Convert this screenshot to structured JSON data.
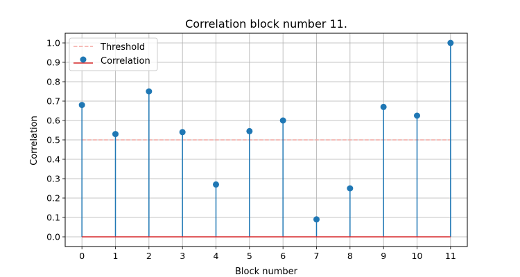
{
  "chart_data": {
    "type": "stem",
    "title": "Correlation block number 11.",
    "xlabel": "Block number",
    "ylabel": "Correlation",
    "xlim": [
      -0.5,
      11.5
    ],
    "ylim": [
      -0.05,
      1.05
    ],
    "x_ticks": [
      "0",
      "1",
      "2",
      "3",
      "4",
      "5",
      "6",
      "7",
      "8",
      "9",
      "10",
      "11"
    ],
    "y_ticks": [
      "0.0",
      "0.1",
      "0.2",
      "0.3",
      "0.4",
      "0.5",
      "0.6",
      "0.7",
      "0.8",
      "0.9",
      "1.0"
    ],
    "grid": true,
    "legend_position": "top-left",
    "threshold": {
      "name": "Threshold",
      "value": 0.5,
      "color": "#f4a6a0",
      "style": "dashed"
    },
    "series": [
      {
        "name": "Correlation",
        "x": [
          0,
          1,
          2,
          3,
          4,
          5,
          6,
          7,
          8,
          9,
          10,
          11
        ],
        "values": [
          0.68,
          0.53,
          0.75,
          0.54,
          0.27,
          0.545,
          0.6,
          0.09,
          0.25,
          0.67,
          0.625,
          1.0
        ],
        "marker_color": "#1f77b4",
        "baseline_color": "#d62728"
      }
    ]
  }
}
